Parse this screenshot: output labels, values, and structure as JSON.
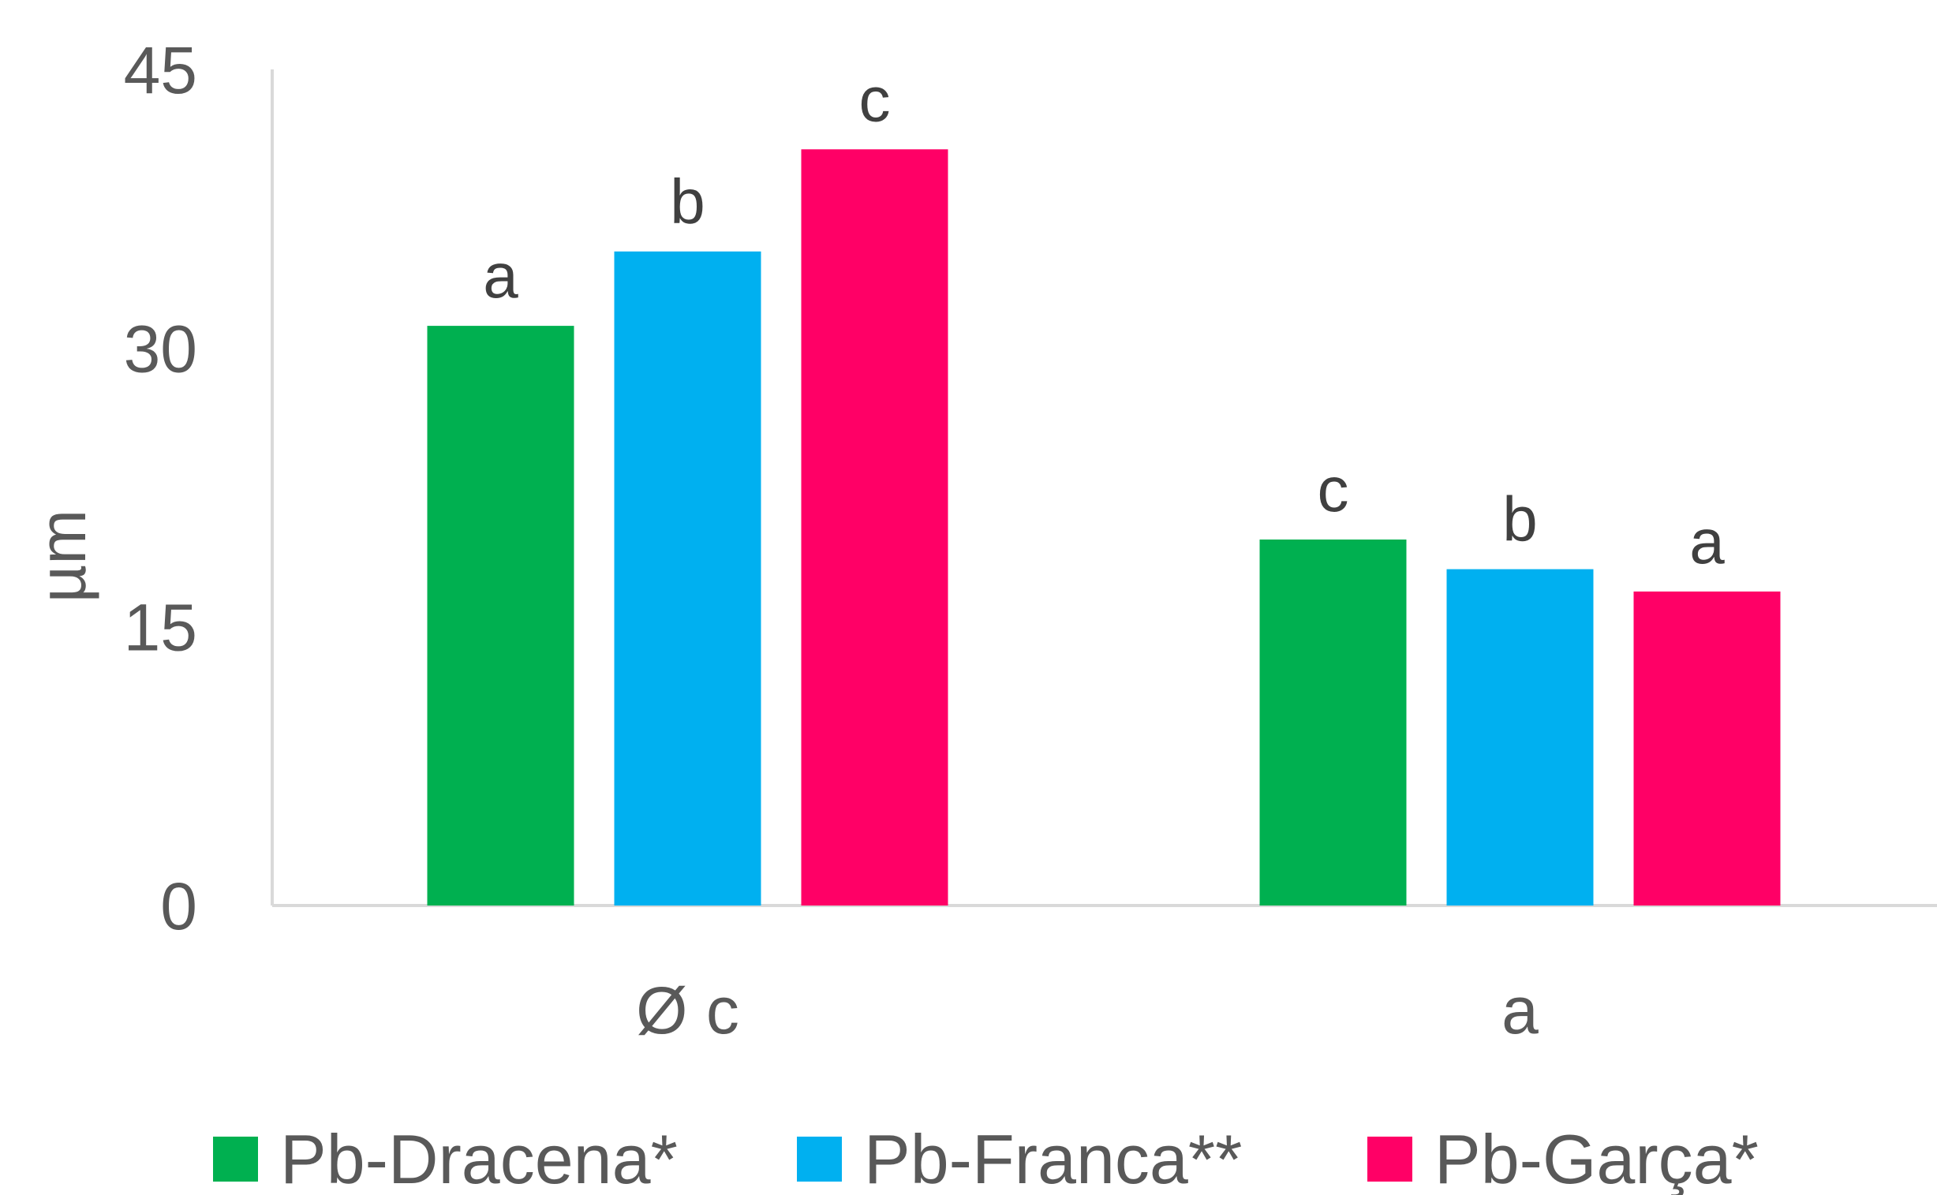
{
  "chart_data": {
    "type": "bar",
    "ylabel": "µm",
    "ylim": [
      0,
      45
    ],
    "yticks": [
      0,
      15,
      30,
      45
    ],
    "grid": false,
    "legend_position": "bottom",
    "categories": [
      "Ø c",
      "a"
    ],
    "series": [
      {
        "name": "Pb-Dracena*",
        "color": "#00B050",
        "values": [
          31.2,
          19.7
        ],
        "labels": [
          "a",
          "c"
        ]
      },
      {
        "name": "Pb-Franca**",
        "color": "#00B0F0",
        "values": [
          35.2,
          18.1
        ],
        "labels": [
          "b",
          "b"
        ]
      },
      {
        "name": "Pb-Garça*",
        "color": "#FF0066",
        "values": [
          40.7,
          16.9
        ],
        "labels": [
          "c",
          "a"
        ]
      }
    ]
  }
}
